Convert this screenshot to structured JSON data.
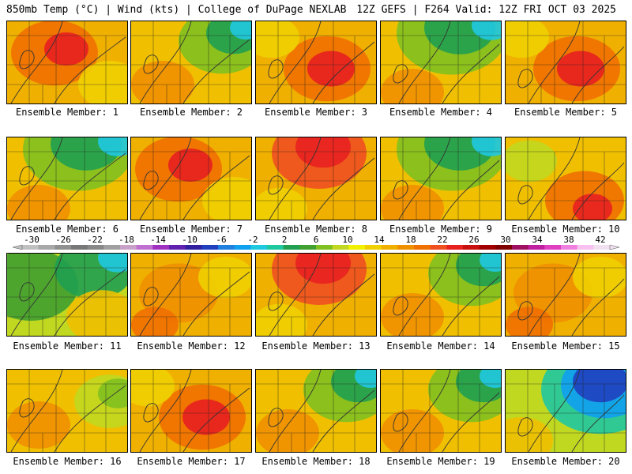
{
  "header": {
    "title": "850mb Temp (°C) | Wind (kts) | College of DuPage NEXLAB",
    "run": "12Z GEFS | F264 Valid: 12Z FRI OCT 03 2025"
  },
  "members": [
    {
      "label": "Ensemble Member: 1",
      "pattern": "warm-nw"
    },
    {
      "label": "Ensemble Member: 2",
      "pattern": "cool-ne"
    },
    {
      "label": "Ensemble Member: 3",
      "pattern": "warm-center"
    },
    {
      "label": "Ensemble Member: 4",
      "pattern": "cool-north"
    },
    {
      "label": "Ensemble Member: 5",
      "pattern": "warm-center"
    },
    {
      "label": "Ensemble Member: 6",
      "pattern": "cool-north"
    },
    {
      "label": "Ensemble Member: 7",
      "pattern": "warm-nw"
    },
    {
      "label": "Ensemble Member: 8",
      "pattern": "warm-north"
    },
    {
      "label": "Ensemble Member: 9",
      "pattern": "cool-north"
    },
    {
      "label": "Ensemble Member: 10",
      "pattern": "warm-se"
    },
    {
      "label": "Ensemble Member: 11",
      "pattern": "cool-west"
    },
    {
      "label": "Ensemble Member: 12",
      "pattern": "warm-mild"
    },
    {
      "label": "Ensemble Member: 13",
      "pattern": "warm-north"
    },
    {
      "label": "Ensemble Member: 14",
      "pattern": "cool-ne"
    },
    {
      "label": "Ensemble Member: 15",
      "pattern": "warm-mild"
    },
    {
      "label": "Ensemble Member: 16",
      "pattern": "cool-east"
    },
    {
      "label": "Ensemble Member: 17",
      "pattern": "warm-center"
    },
    {
      "label": "Ensemble Member: 18",
      "pattern": "cool-ne"
    },
    {
      "label": "Ensemble Member: 19",
      "pattern": "cool-ne"
    },
    {
      "label": "Ensemble Member: 20",
      "pattern": "cold-ne"
    }
  ],
  "legend": {
    "unit": "°C",
    "labels": [
      "-30",
      "-26",
      "-22",
      "-18",
      "-14",
      "-10",
      "-6",
      "-2",
      "2",
      "6",
      "10",
      "14",
      "18",
      "22",
      "26",
      "30",
      "34",
      "38",
      "42"
    ],
    "colors": [
      "#c0c0c0",
      "#a8a8a8",
      "#909090",
      "#787878",
      "#888888",
      "#a0a0a0",
      "#c8a0c8",
      "#c070d0",
      "#a030c0",
      "#6020b0",
      "#3020a0",
      "#2040c0",
      "#2080e0",
      "#10a0f0",
      "#20c8e0",
      "#20c8a0",
      "#20a050",
      "#40a030",
      "#80c020",
      "#c0d820",
      "#f0f000",
      "#f0d000",
      "#f0b000",
      "#f09000",
      "#f07000",
      "#f05020",
      "#e82020",
      "#c81010",
      "#a00000",
      "#800000",
      "#a01060",
      "#c020a0",
      "#e040c0",
      "#f080e0",
      "#f8c0f0",
      "#f0e0f0"
    ]
  }
}
